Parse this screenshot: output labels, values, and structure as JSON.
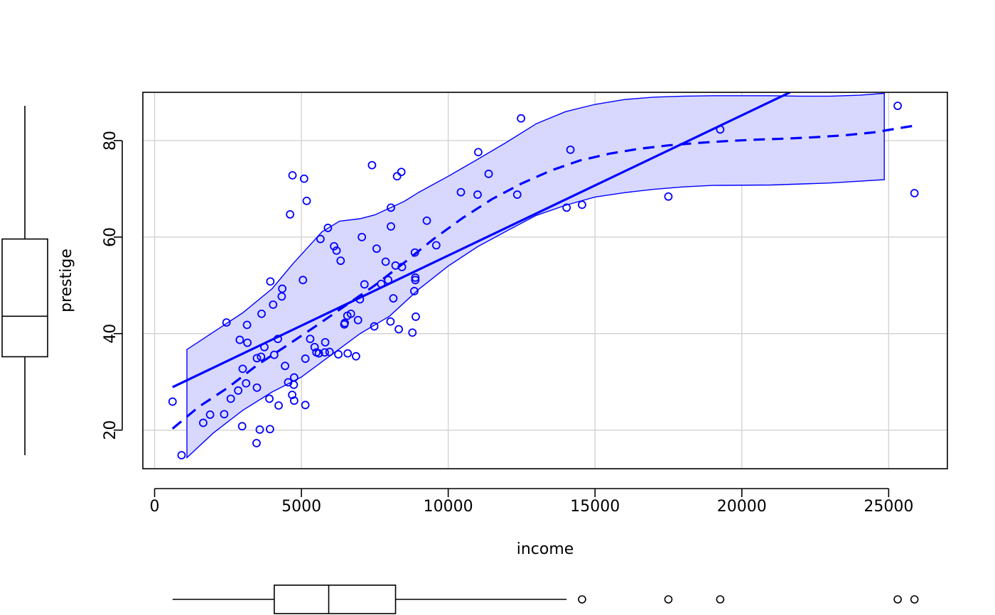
{
  "chart_data": {
    "type": "scatter",
    "title": "",
    "xlabel": "income",
    "ylabel": "prestige",
    "xlim": [
      -400,
      27000
    ],
    "ylim": [
      12,
      90
    ],
    "x_ticks": [
      0,
      5000,
      10000,
      15000,
      20000,
      25000
    ],
    "x_tick_labels": [
      "0",
      "5000",
      "10000",
      "15000",
      "20000",
      "25000"
    ],
    "y_ticks": [
      20,
      40,
      60,
      80
    ],
    "y_tick_labels": [
      "20",
      "40",
      "60",
      "80"
    ],
    "grid": true,
    "color": "#0000ff",
    "band_fill": "#d8d8ff",
    "grid_color": "#d3d3d3",
    "points": [
      [
        611,
        25.9
      ],
      [
        918,
        14.8
      ],
      [
        1656,
        21.5
      ],
      [
        1890,
        23.2
      ],
      [
        2370,
        23.3
      ],
      [
        2448,
        42.3
      ],
      [
        2594,
        26.5
      ],
      [
        2847,
        28.2
      ],
      [
        2901,
        38.7
      ],
      [
        2981,
        20.8
      ],
      [
        3000,
        32.7
      ],
      [
        3116,
        29.7
      ],
      [
        3148,
        41.8
      ],
      [
        3161,
        38.1
      ],
      [
        3472,
        17.3
      ],
      [
        3485,
        28.8
      ],
      [
        3485,
        34.9
      ],
      [
        3582,
        20.1
      ],
      [
        3625,
        35.2
      ],
      [
        3643,
        44.1
      ],
      [
        3739,
        37.2
      ],
      [
        3910,
        26.5
      ],
      [
        3930,
        20.2
      ],
      [
        3942,
        50.8
      ],
      [
        4036,
        46.0
      ],
      [
        4075,
        35.6
      ],
      [
        4199,
        38.9
      ],
      [
        4224,
        25.1
      ],
      [
        4330,
        47.7
      ],
      [
        4348,
        49.3
      ],
      [
        4443,
        33.3
      ],
      [
        4549,
        29.9
      ],
      [
        4614,
        64.7
      ],
      [
        4686,
        27.3
      ],
      [
        4696,
        72.8
      ],
      [
        4741,
        29.4
      ],
      [
        4753,
        26.1
      ],
      [
        4753,
        30.9
      ],
      [
        5052,
        51.1
      ],
      [
        5092,
        72.1
      ],
      [
        5134,
        25.2
      ],
      [
        5134,
        34.8
      ],
      [
        5180,
        67.5
      ],
      [
        5299,
        38.9
      ],
      [
        5449,
        37.2
      ],
      [
        5511,
        36.1
      ],
      [
        5593,
        35.9
      ],
      [
        5648,
        59.6
      ],
      [
        5795,
        36.1
      ],
      [
        5811,
        38.2
      ],
      [
        5902,
        61.9
      ],
      [
        5959,
        36.2
      ],
      [
        6112,
        58.1
      ],
      [
        6197,
        57.2
      ],
      [
        6259,
        35.7
      ],
      [
        6336,
        55.1
      ],
      [
        6462,
        41.9
      ],
      [
        6477,
        42.2
      ],
      [
        6565,
        43.7
      ],
      [
        6576,
        35.9
      ],
      [
        6686,
        44.1
      ],
      [
        6860,
        35.3
      ],
      [
        6928,
        42.8
      ],
      [
        6992,
        47.1
      ],
      [
        7059,
        60.0
      ],
      [
        7147,
        50.2
      ],
      [
        7405,
        74.9
      ],
      [
        7482,
        41.5
      ],
      [
        7562,
        57.6
      ],
      [
        7716,
        50.3
      ],
      [
        7869,
        54.9
      ],
      [
        7956,
        51.1
      ],
      [
        8034,
        42.5
      ],
      [
        8049,
        66.1
      ],
      [
        8049,
        62.2
      ],
      [
        8131,
        47.3
      ],
      [
        8206,
        54.1
      ],
      [
        8258,
        72.6
      ],
      [
        8316,
        40.9
      ],
      [
        8403,
        73.5
      ],
      [
        8425,
        53.8
      ],
      [
        8780,
        40.2
      ],
      [
        8845,
        48.8
      ],
      [
        8865,
        56.8
      ],
      [
        8880,
        51.6
      ],
      [
        8880,
        51.1
      ],
      [
        8895,
        43.5
      ],
      [
        9271,
        63.4
      ],
      [
        9593,
        58.3
      ],
      [
        10432,
        69.3
      ],
      [
        11000,
        68.8
      ],
      [
        11023,
        77.6
      ],
      [
        11377,
        73.1
      ],
      [
        12351,
        68.8
      ],
      [
        12480,
        84.6
      ],
      [
        14032,
        66.1
      ],
      [
        14163,
        78.1
      ],
      [
        14558,
        66.7
      ],
      [
        17498,
        68.4
      ],
      [
        19263,
        82.3
      ],
      [
        25308,
        87.2
      ],
      [
        25879,
        69.1
      ]
    ],
    "lines": {
      "linear_fit": [
        [
          611,
          28.9
        ],
        [
          21640,
          90
        ]
      ],
      "smooth_fit": [
        [
          611,
          20.3
        ],
        [
          1500,
          24.8
        ],
        [
          2500,
          28.8
        ],
        [
          3500,
          33.5
        ],
        [
          4500,
          37.5
        ],
        [
          5500,
          41.6
        ],
        [
          6500,
          45.8
        ],
        [
          7500,
          50.0
        ],
        [
          8500,
          54.7
        ],
        [
          9500,
          59.6
        ],
        [
          10500,
          64.0
        ],
        [
          11500,
          67.9
        ],
        [
          12500,
          71.1
        ],
        [
          13500,
          73.8
        ],
        [
          14500,
          75.9
        ],
        [
          15500,
          77.3
        ],
        [
          16500,
          78.3
        ],
        [
          17500,
          79.0
        ],
        [
          18500,
          79.5
        ],
        [
          19500,
          79.9
        ],
        [
          20500,
          80.2
        ],
        [
          21500,
          80.4
        ],
        [
          22500,
          80.7
        ],
        [
          23500,
          81.1
        ],
        [
          24500,
          81.7
        ],
        [
          25879,
          83.1
        ]
      ],
      "band_upper": [
        [
          1100,
          36.7
        ],
        [
          2000,
          40.3
        ],
        [
          3000,
          44.3
        ],
        [
          4000,
          49.3
        ],
        [
          4700,
          54.4
        ],
        [
          5300,
          58.4
        ],
        [
          5700,
          61.1
        ],
        [
          6300,
          63.3
        ],
        [
          7000,
          63.8
        ],
        [
          7500,
          64.6
        ],
        [
          8000,
          66.0
        ],
        [
          8500,
          67.4
        ],
        [
          9000,
          69.3
        ],
        [
          10000,
          72.6
        ],
        [
          11000,
          76.1
        ],
        [
          12000,
          79.7
        ],
        [
          13000,
          83.5
        ],
        [
          14000,
          86.0
        ],
        [
          15000,
          87.5
        ],
        [
          16000,
          88.5
        ],
        [
          17000,
          89.0
        ],
        [
          18000,
          89.2
        ],
        [
          19000,
          89.3
        ],
        [
          20000,
          89.3
        ],
        [
          21000,
          89.3
        ],
        [
          22000,
          89.2
        ],
        [
          23000,
          89.2
        ],
        [
          24000,
          89.4
        ],
        [
          24850,
          89.8
        ]
      ],
      "band_lower": [
        [
          24850,
          71.9
        ],
        [
          23000,
          71.2
        ],
        [
          21000,
          70.8
        ],
        [
          19000,
          70.7
        ],
        [
          18000,
          70.4
        ],
        [
          17000,
          69.9
        ],
        [
          16000,
          69.2
        ],
        [
          15000,
          68.3
        ],
        [
          14000,
          66.6
        ],
        [
          13000,
          64.5
        ],
        [
          12000,
          61.3
        ],
        [
          11000,
          58.0
        ],
        [
          10000,
          54.0
        ],
        [
          9000,
          49.2
        ],
        [
          8000,
          43.6
        ],
        [
          7000,
          40.0
        ],
        [
          6000,
          35.5
        ],
        [
          5000,
          31.0
        ],
        [
          4000,
          27.9
        ],
        [
          3000,
          24.1
        ],
        [
          2000,
          19.4
        ],
        [
          1100,
          14.3
        ]
      ]
    },
    "y_boxplot": {
      "whisker_low": 14.8,
      "q1": 35.2,
      "median": 43.6,
      "q3": 59.6,
      "whisker_high": 87.2,
      "outliers": []
    },
    "x_boxplot": {
      "whisker_low": 611,
      "q1": 4075,
      "median": 5930,
      "q3": 8206,
      "whisker_high": 14032,
      "outliers": [
        14558,
        17498,
        19263,
        25308,
        25879
      ]
    }
  }
}
